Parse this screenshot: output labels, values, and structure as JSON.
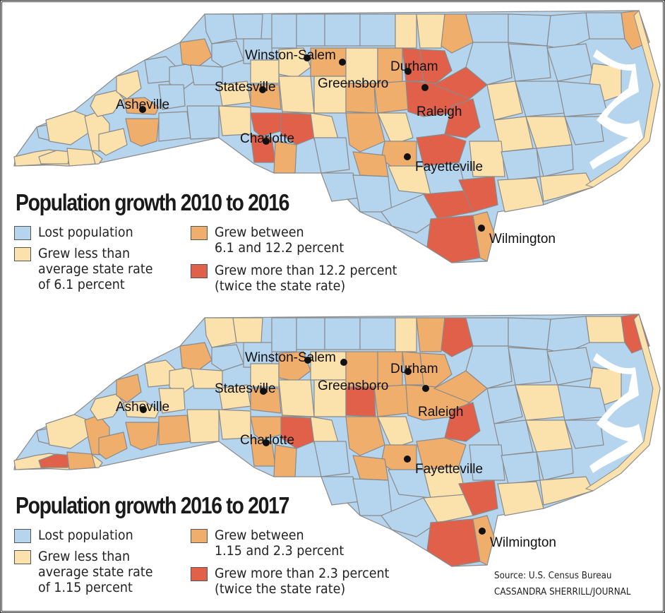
{
  "colors": {
    "lost": "#b5d4ee",
    "grew_less": "#fbe2ad",
    "grew_between": "#efae6c",
    "grew_more": "#e0604a",
    "border": "#8a8a8a",
    "water": "#ffffff"
  },
  "map1": {
    "title": "Population growth 2010 to 2016",
    "legend": [
      {
        "key": "lost",
        "lines": [
          "Lost population"
        ]
      },
      {
        "key": "grew_less",
        "lines": [
          "Grew less than",
          "average state rate",
          "of 6.1 percent"
        ]
      },
      {
        "key": "grew_between",
        "lines": [
          "Grew between",
          "6.1 and 12.2 percent"
        ]
      },
      {
        "key": "grew_more",
        "lines": [
          "Grew more than 12.2 percent",
          "(twice the state rate)"
        ]
      }
    ],
    "cities": [
      "Winston-Salem",
      "Greensboro",
      "Durham",
      "Statesville",
      "Asheville",
      "Raleigh",
      "Charlotte",
      "Fayetteville",
      "Wilmington"
    ]
  },
  "map2": {
    "title": "Population growth 2016 to 2017",
    "legend": [
      {
        "key": "lost",
        "lines": [
          "Lost population"
        ]
      },
      {
        "key": "grew_less",
        "lines": [
          "Grew less than",
          "average state rate",
          "of 1.15 percent"
        ]
      },
      {
        "key": "grew_between",
        "lines": [
          "Grew between",
          "1.15 and 2.3 percent"
        ]
      },
      {
        "key": "grew_more",
        "lines": [
          "Grew more than 2.3 percent",
          "(twice the state rate)"
        ]
      }
    ],
    "cities": [
      "Winston-Salem",
      "Greensboro",
      "Durham",
      "Statesville",
      "Asheville",
      "Raleigh",
      "Charlotte",
      "Fayetteville",
      "Wilmington"
    ]
  },
  "credits": {
    "source": "Source: U.S. Census Bureau",
    "byline": "CASSANDRA SHERRILL/JOURNAL"
  }
}
